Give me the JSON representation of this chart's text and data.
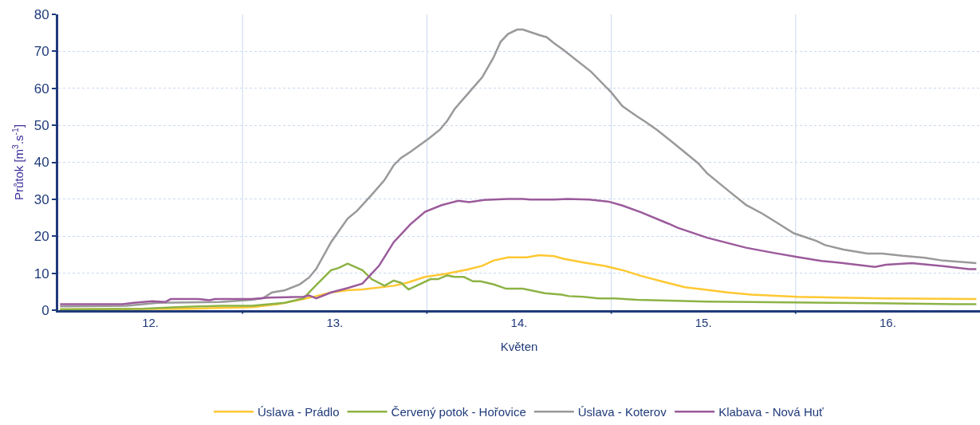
{
  "chart_data": {
    "type": "line",
    "xlabel": "Květen",
    "ylabel": "Průtok [m$^{3}$.s$^{-1}$]",
    "xlim": [
      12,
      17
    ],
    "ylim": [
      0,
      80
    ],
    "yticks": [
      0,
      10,
      20,
      30,
      40,
      50,
      60,
      70,
      80
    ],
    "xticks": [
      {
        "value": 12.5,
        "label": "12."
      },
      {
        "value": 13,
        "label": null
      },
      {
        "value": 13.5,
        "label": "13."
      },
      {
        "value": 14,
        "label": null
      },
      {
        "value": 14.5,
        "label": "14."
      },
      {
        "value": 15,
        "label": null
      },
      {
        "value": 15.5,
        "label": "15."
      },
      {
        "value": 16,
        "label": null
      },
      {
        "value": 16.5,
        "label": "16."
      }
    ],
    "grid": true,
    "legend": "bottom",
    "marker": "none",
    "line_style": "solid",
    "series": [
      {
        "name": "Úslava - Prádlo",
        "color": "#ffc832",
        "x": [
          12.01,
          12.71,
          13.05,
          13.19,
          13.31,
          13.4,
          13.48,
          13.57,
          13.65,
          13.82,
          13.89,
          13.99,
          14.1,
          14.22,
          14.3,
          14.36,
          14.44,
          14.54,
          14.61,
          14.69,
          14.74,
          14.85,
          14.97,
          15.07,
          15.16,
          15.28,
          15.4,
          15.5,
          15.63,
          15.76,
          16.01,
          16.23,
          16.49,
          16.98
        ],
        "values": [
          0.2,
          0.4,
          0.8,
          1.6,
          2.8,
          3.8,
          4.8,
          5.4,
          5.6,
          6.6,
          7.4,
          9,
          9.8,
          11,
          12,
          13.4,
          14.3,
          14.3,
          14.9,
          14.6,
          13.9,
          12.9,
          11.9,
          10.7,
          9.3,
          7.7,
          6.2,
          5.6,
          4.8,
          4.2,
          3.6,
          3.4,
          3.2,
          3
        ]
      },
      {
        "name": "Červený potok - Hořovice",
        "color": "#8db346",
        "x": [
          12.01,
          12.46,
          12.64,
          12.88,
          13.05,
          13.23,
          13.33,
          13.4,
          13.48,
          13.52,
          13.57,
          13.65,
          13.7,
          13.77,
          13.82,
          13.86,
          13.9,
          14.02,
          14.06,
          14.11,
          14.15,
          14.2,
          14.25,
          14.29,
          14.36,
          14.43,
          14.52,
          14.64,
          14.73,
          14.77,
          14.85,
          14.93,
          15.02,
          15.14,
          15.31,
          15.52,
          15.76,
          16.44,
          16.87,
          16.98
        ],
        "values": [
          0.2,
          0.4,
          0.8,
          1.2,
          1.2,
          2,
          3.2,
          6.8,
          10.8,
          11.4,
          12.6,
          10.8,
          8.4,
          6.6,
          8,
          7.4,
          5.6,
          8.4,
          8.4,
          9.4,
          9,
          9,
          7.8,
          7.8,
          7,
          5.8,
          5.8,
          4.6,
          4.2,
          3.8,
          3.6,
          3.2,
          3.2,
          2.8,
          2.6,
          2.3,
          2.2,
          1.9,
          1.6,
          1.6
        ]
      },
      {
        "name": "Úslava - Koterov",
        "color": "#999999",
        "x": [
          12.01,
          12.37,
          12.54,
          12.88,
          13.05,
          13.11,
          13.16,
          13.23,
          13.31,
          13.36,
          13.4,
          13.48,
          13.57,
          13.62,
          13.7,
          13.77,
          13.82,
          13.86,
          13.91,
          14.01,
          14.07,
          14.11,
          14.15,
          14.22,
          14.3,
          14.36,
          14.4,
          14.44,
          14.49,
          14.52,
          14.61,
          14.65,
          14.69,
          14.74,
          14.89,
          15,
          15.06,
          15.14,
          15.19,
          15.25,
          15.33,
          15.47,
          15.52,
          15.64,
          15.73,
          15.82,
          15.9,
          15.99,
          16.11,
          16.16,
          16.26,
          16.39,
          16.47,
          16.58,
          16.7,
          16.8,
          16.94,
          16.98
        ],
        "values": [
          1,
          1.2,
          2,
          2.2,
          2.8,
          3.2,
          4.8,
          5.4,
          7,
          8.8,
          11.2,
          18.4,
          24.8,
          26.8,
          31.2,
          35.2,
          39.2,
          41.2,
          42.8,
          46.4,
          48.8,
          51.2,
          54.4,
          58.4,
          63,
          68.2,
          72.6,
          74.7,
          75.9,
          75.9,
          74.4,
          73.8,
          72.2,
          70.4,
          64.5,
          58.9,
          55.2,
          52.4,
          50.8,
          48.7,
          45.5,
          39.8,
          37,
          32.1,
          28.5,
          26.1,
          23.6,
          20.8,
          18.8,
          17.6,
          16.4,
          15.3,
          15.3,
          14.7,
          14.2,
          13.4,
          12.9,
          12.7
        ]
      },
      {
        "name": "Klabava - Nová Huť",
        "color": "#9b5a9b",
        "x": [
          12.01,
          12.35,
          12.41,
          12.51,
          12.58,
          12.61,
          12.76,
          12.82,
          12.85,
          13.05,
          13.14,
          13.33,
          13.36,
          13.4,
          13.48,
          13.57,
          13.65,
          13.74,
          13.82,
          13.91,
          13.99,
          14.08,
          14.17,
          14.23,
          14.31,
          14.44,
          14.52,
          14.56,
          14.69,
          14.76,
          14.88,
          14.99,
          15.06,
          15.16,
          15.31,
          15.36,
          15.52,
          15.73,
          15.88,
          16.02,
          16.14,
          16.23,
          16.43,
          16.49,
          16.63,
          16.8,
          16.94,
          16.98
        ],
        "values": [
          1.6,
          1.6,
          2,
          2.4,
          2.2,
          3,
          3,
          2.7,
          3,
          3,
          3.4,
          3.6,
          4,
          3.2,
          4.8,
          6,
          7.2,
          12,
          18.4,
          23.2,
          26.6,
          28.4,
          29.6,
          29.2,
          29.8,
          30.1,
          30.1,
          29.9,
          29.9,
          30.1,
          29.9,
          29.3,
          28.3,
          26.5,
          23.4,
          22.3,
          19.6,
          16.9,
          15.5,
          14.3,
          13.3,
          12.9,
          11.7,
          12.3,
          12.7,
          11.9,
          11.1,
          11.1
        ]
      }
    ]
  }
}
